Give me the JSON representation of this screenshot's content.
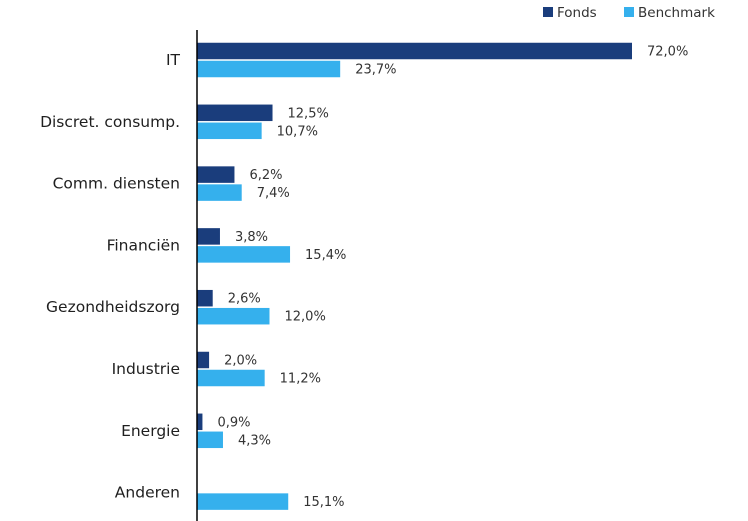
{
  "chart_data": {
    "type": "bar",
    "orientation": "horizontal",
    "categories": [
      "IT",
      "Discret. consump.",
      "Comm. diensten",
      "Financiën",
      "Gezondheidszorg",
      "Industrie",
      "Energie",
      "Anderen"
    ],
    "series": [
      {
        "name": "Fonds",
        "color": "#1a3d7c",
        "values": [
          72.0,
          12.5,
          6.2,
          3.8,
          2.6,
          2.0,
          0.9,
          null
        ],
        "labels": [
          "72,0%",
          "12,5%",
          "6,2%",
          "3,8%",
          "2,6%",
          "2,0%",
          "0,9%",
          null
        ]
      },
      {
        "name": "Benchmark",
        "color": "#35b0ed",
        "values": [
          23.7,
          10.7,
          7.4,
          15.4,
          12.0,
          11.2,
          4.3,
          15.1
        ],
        "labels": [
          "23,7%",
          "10,7%",
          "7,4%",
          "15,4%",
          "12,0%",
          "11,2%",
          "4,3%",
          "15,1%"
        ]
      }
    ],
    "xlim": [
      0,
      72.0
    ],
    "legend_position": "top-right",
    "grid": false
  }
}
